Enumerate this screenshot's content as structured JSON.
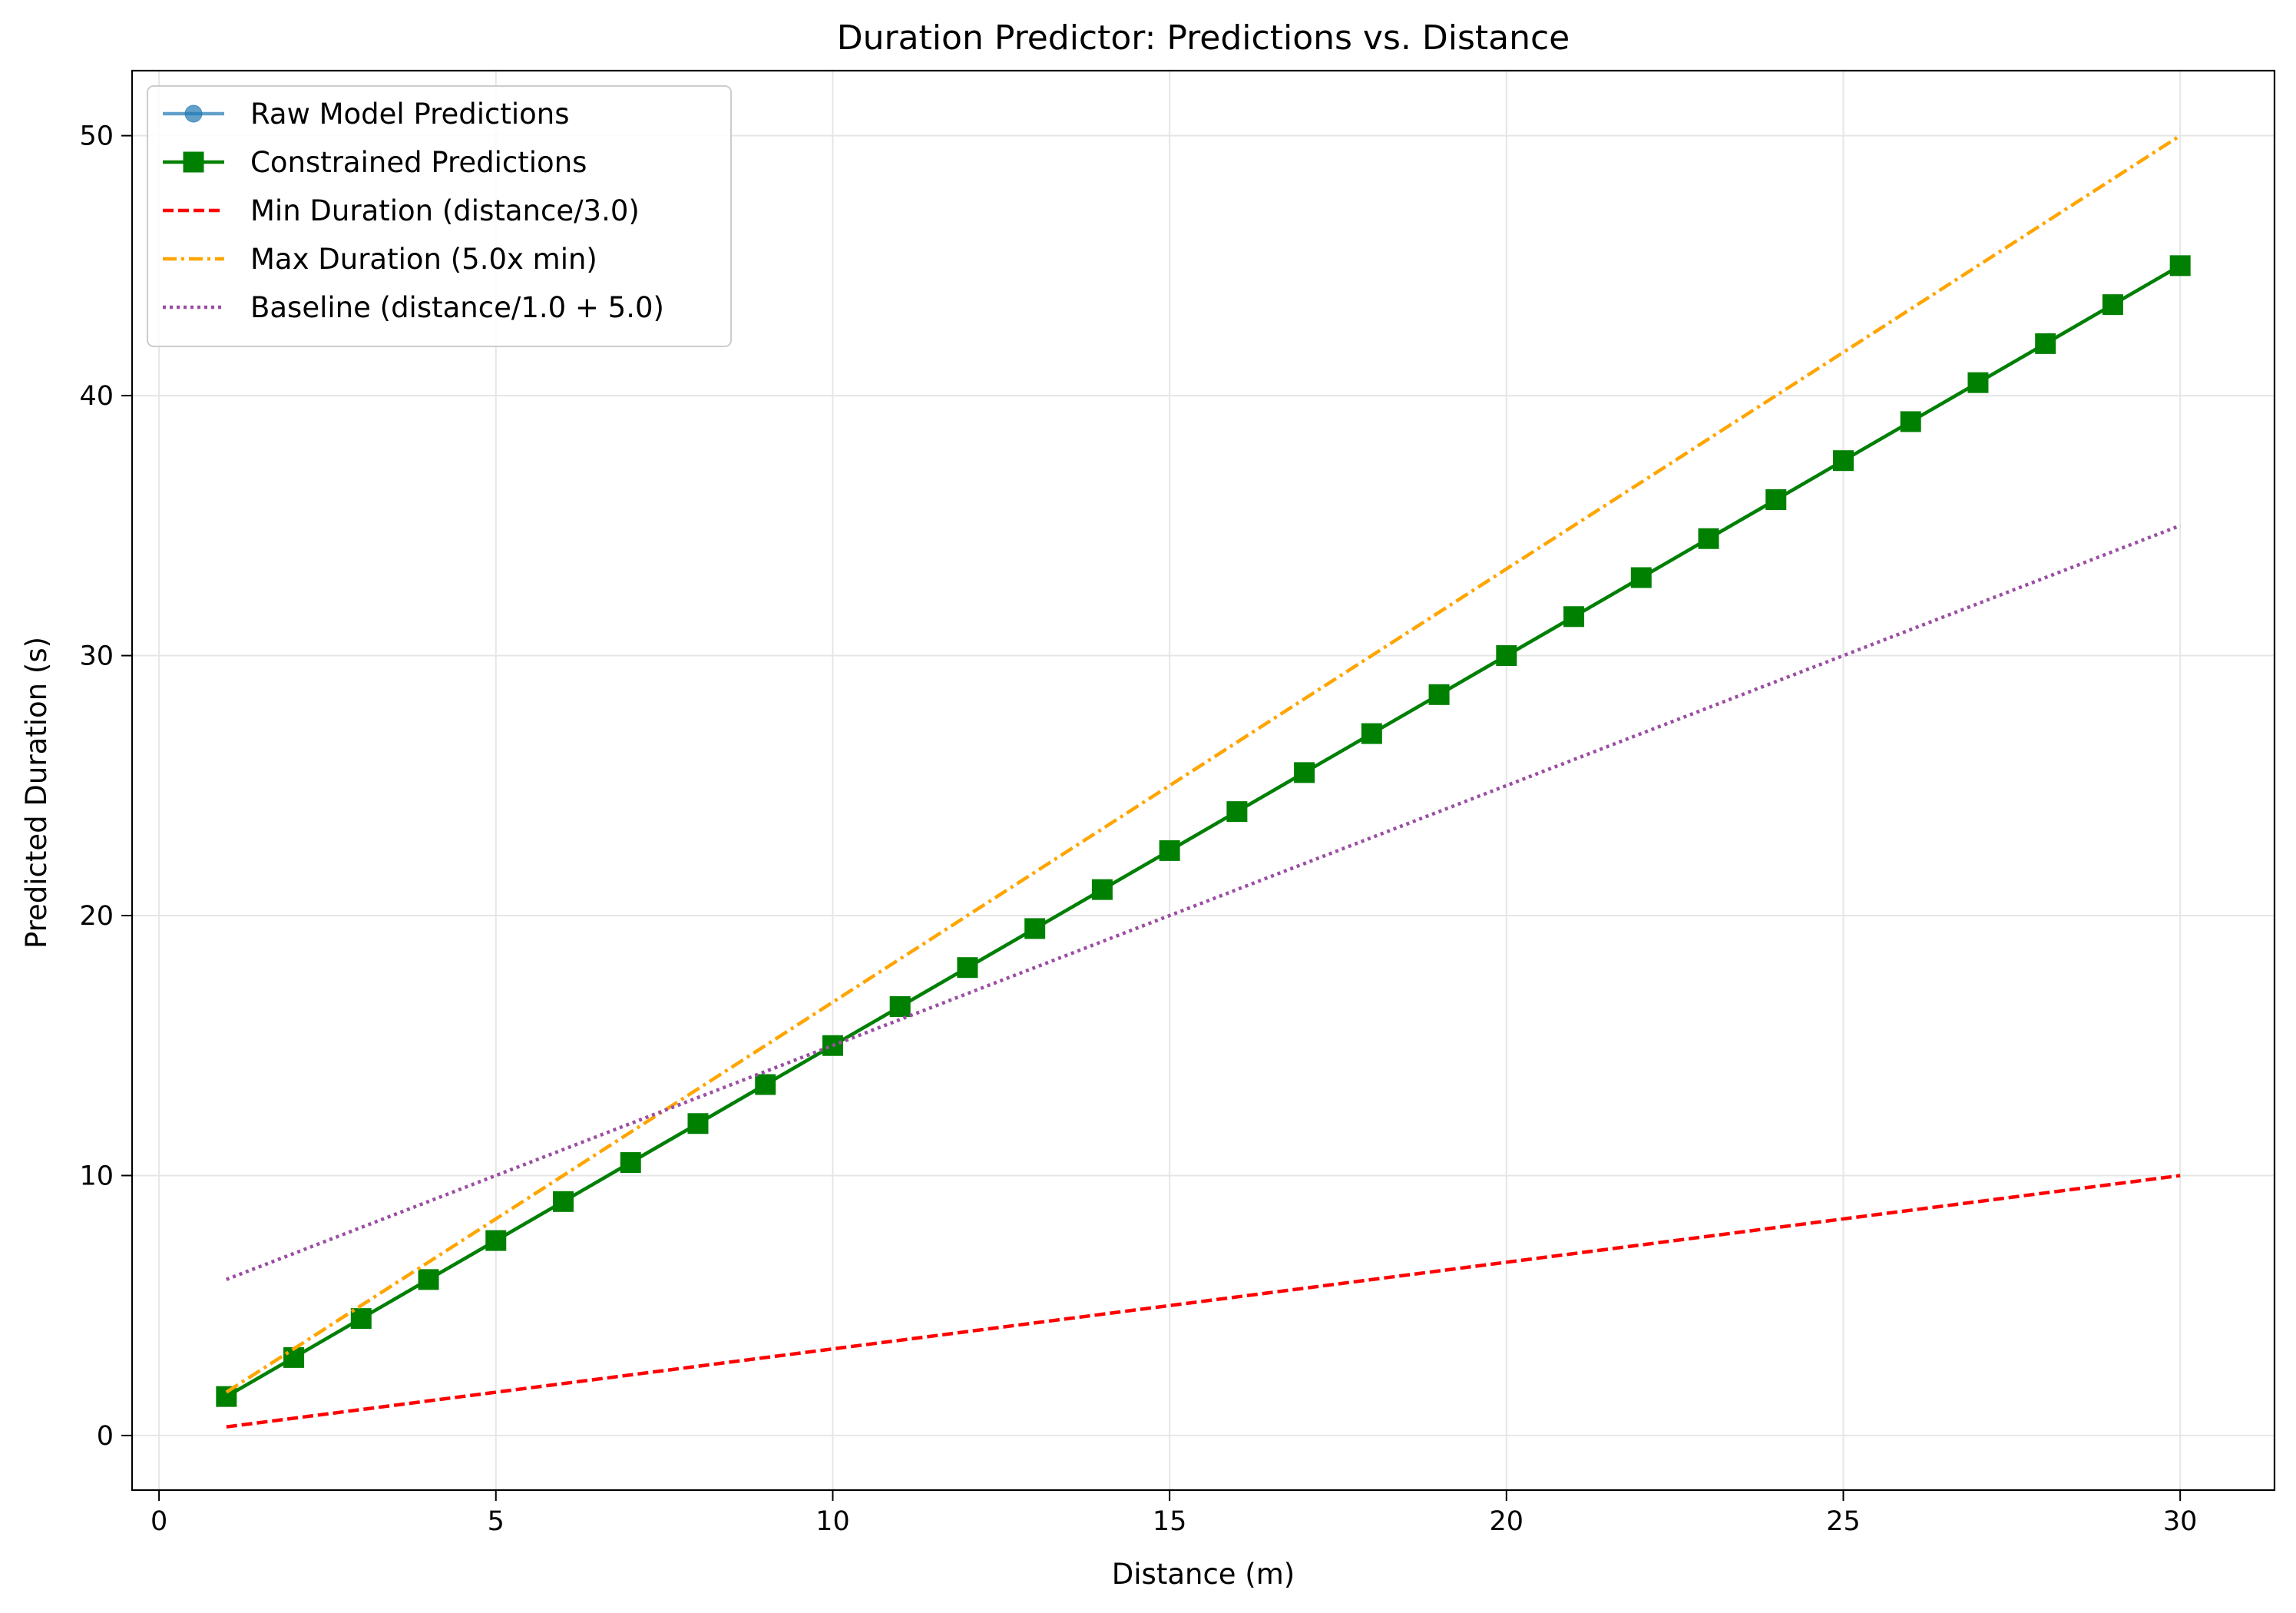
{
  "chart_data": {
    "type": "line",
    "title": "Duration Predictor: Predictions vs. Distance",
    "xlabel": "Distance (m)",
    "ylabel": "Predicted Duration (s)",
    "xlim": [
      -0.4,
      31.4
    ],
    "ylim": [
      -2.1,
      52.5
    ],
    "xticks": [
      0,
      5,
      10,
      15,
      20,
      25,
      30
    ],
    "yticks": [
      0,
      10,
      20,
      30,
      40,
      50
    ],
    "grid": true,
    "legend_position": "upper-left",
    "series": [
      {
        "name": "Raw Model Predictions",
        "color": "#1f77b4",
        "style": "solid",
        "marker": "circle",
        "alpha": 0.7,
        "x": [
          1,
          2,
          3,
          4,
          5,
          6,
          7,
          8,
          9,
          10,
          11,
          12,
          13,
          14,
          15,
          16,
          17,
          18,
          19,
          20,
          21,
          22,
          23,
          24,
          25,
          26,
          27,
          28,
          29,
          30
        ],
        "values": [
          1.5,
          3,
          4.5,
          6,
          7.5,
          9,
          10.5,
          12,
          13.5,
          15,
          16.5,
          18,
          19.5,
          21,
          22.5,
          24,
          25.5,
          27,
          28.5,
          30,
          31.5,
          33,
          34.5,
          36,
          37.5,
          39,
          40.5,
          42,
          43.5,
          45
        ]
      },
      {
        "name": "Constrained Predictions",
        "color": "#008000",
        "style": "solid",
        "marker": "square",
        "x": [
          1,
          2,
          3,
          4,
          5,
          6,
          7,
          8,
          9,
          10,
          11,
          12,
          13,
          14,
          15,
          16,
          17,
          18,
          19,
          20,
          21,
          22,
          23,
          24,
          25,
          26,
          27,
          28,
          29,
          30
        ],
        "values": [
          1.5,
          3,
          4.5,
          6,
          7.5,
          9,
          10.5,
          12,
          13.5,
          15,
          16.5,
          18,
          19.5,
          21,
          22.5,
          24,
          25.5,
          27,
          28.5,
          30,
          31.5,
          33,
          34.5,
          36,
          37.5,
          39,
          40.5,
          42,
          43.5,
          45
        ]
      },
      {
        "name": "Min Duration (distance/3.0)",
        "color": "#ff0000",
        "style": "dashed",
        "marker": "none",
        "x": [
          1,
          30
        ],
        "values": [
          0.333,
          10
        ]
      },
      {
        "name": "Max Duration (5.0x min)",
        "color": "#ffa500",
        "style": "dashdot",
        "marker": "none",
        "x": [
          1,
          30
        ],
        "values": [
          1.667,
          50
        ]
      },
      {
        "name": "Baseline (distance/1.0 + 5.0)",
        "color": "#9b4ea3",
        "style": "dotted",
        "marker": "none",
        "x": [
          1,
          30
        ],
        "values": [
          6,
          35
        ]
      }
    ]
  }
}
